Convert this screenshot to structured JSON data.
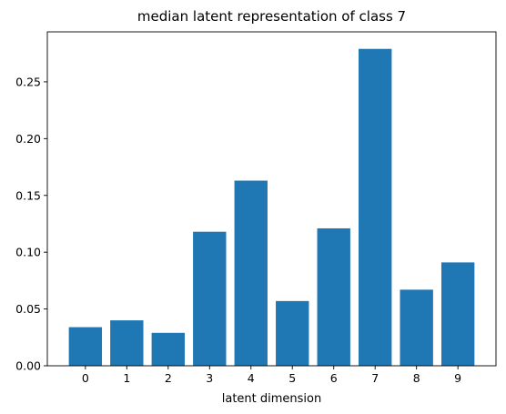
{
  "chart_data": {
    "type": "bar",
    "title": "median latent representation of class 7",
    "xlabel": "latent dimension",
    "ylabel": "",
    "categories": [
      "0",
      "1",
      "2",
      "3",
      "4",
      "5",
      "6",
      "7",
      "8",
      "9"
    ],
    "values": [
      0.034,
      0.04,
      0.029,
      0.118,
      0.163,
      0.057,
      0.121,
      0.279,
      0.067,
      0.091
    ],
    "ylim": [
      0,
      0.294
    ],
    "yticks": [
      0.0,
      0.05,
      0.1,
      0.15,
      0.2,
      0.25
    ],
    "ytick_labels": [
      "0.00",
      "0.05",
      "0.10",
      "0.15",
      "0.20",
      "0.25"
    ],
    "grid": false,
    "bar_color": "#1f77b4"
  }
}
